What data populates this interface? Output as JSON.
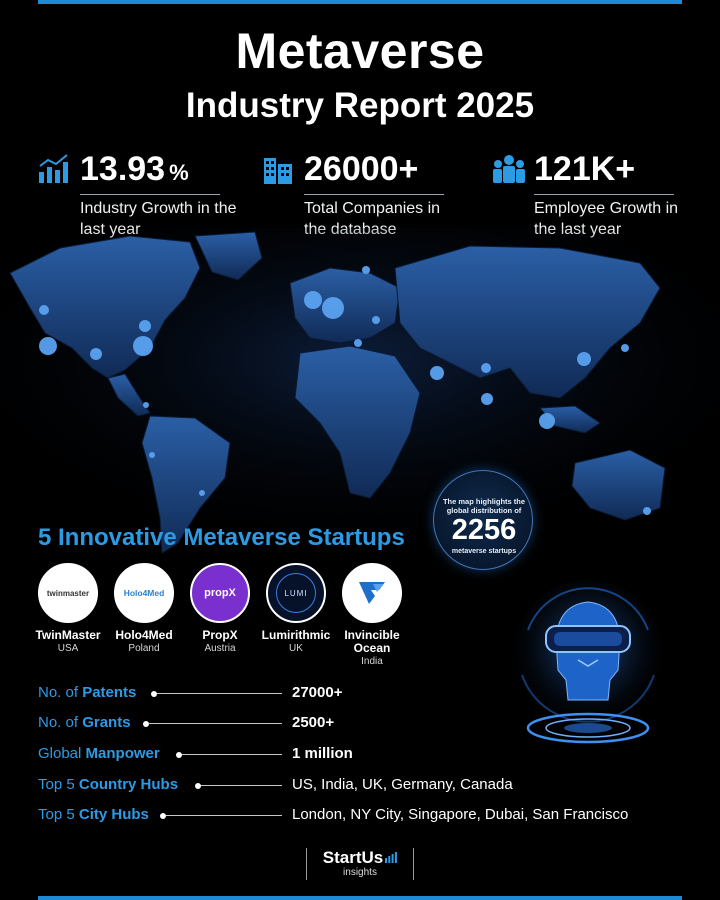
{
  "header": {
    "title": "Metaverse",
    "subtitle": "Industry Report 2025"
  },
  "stats": [
    {
      "value": "13.93",
      "unit": "%",
      "desc": "Industry Growth in the last year",
      "icon": "bar-chart-icon"
    },
    {
      "value": "26000+",
      "unit": "",
      "desc": "Total Companies in the database",
      "icon": "buildings-icon"
    },
    {
      "value": "121K+",
      "unit": "",
      "desc": "Employee Growth in the last year",
      "icon": "people-icon"
    }
  ],
  "map_badge": {
    "text": "The map highlights the global distribution of",
    "number": "2256",
    "sub": "metaverse startups"
  },
  "startups": {
    "heading": "5 Innovative Metaverse Startups",
    "items": [
      {
        "name": "TwinMaster",
        "country": "USA",
        "logo_text": "twinmaster"
      },
      {
        "name": "Holo4Med",
        "country": "Poland",
        "logo_text": "Holo4Med"
      },
      {
        "name": "PropX",
        "country": "Austria",
        "logo_text": "propX"
      },
      {
        "name": "Lumirithmic",
        "country": "UK",
        "logo_text": "LUMI"
      },
      {
        "name": "Invincible Ocean",
        "country": "India",
        "logo_text": ""
      }
    ]
  },
  "facts": [
    {
      "label_prefix": "No. of ",
      "label_bold": "Patents",
      "value": "27000+",
      "bold": true
    },
    {
      "label_prefix": "No. of ",
      "label_bold": "Grants",
      "value": "2500+",
      "bold": true
    },
    {
      "label_prefix": "Global ",
      "label_bold": "Manpower",
      "value": "1 million",
      "bold": true
    },
    {
      "label_prefix": "Top 5 ",
      "label_bold": "Country Hubs",
      "value": "US, India, UK, Germany, Canada",
      "bold": false
    },
    {
      "label_prefix": "Top 5 ",
      "label_bold": "City Hubs",
      "value": "London, NY City, Singapore, Dubai, San Francisco",
      "bold": false
    }
  ],
  "footer": {
    "brand": "StartUs",
    "sub": "insights"
  },
  "colors": {
    "accent": "#2c9be6",
    "bar": "#1e8ad6",
    "background": "#000000"
  }
}
